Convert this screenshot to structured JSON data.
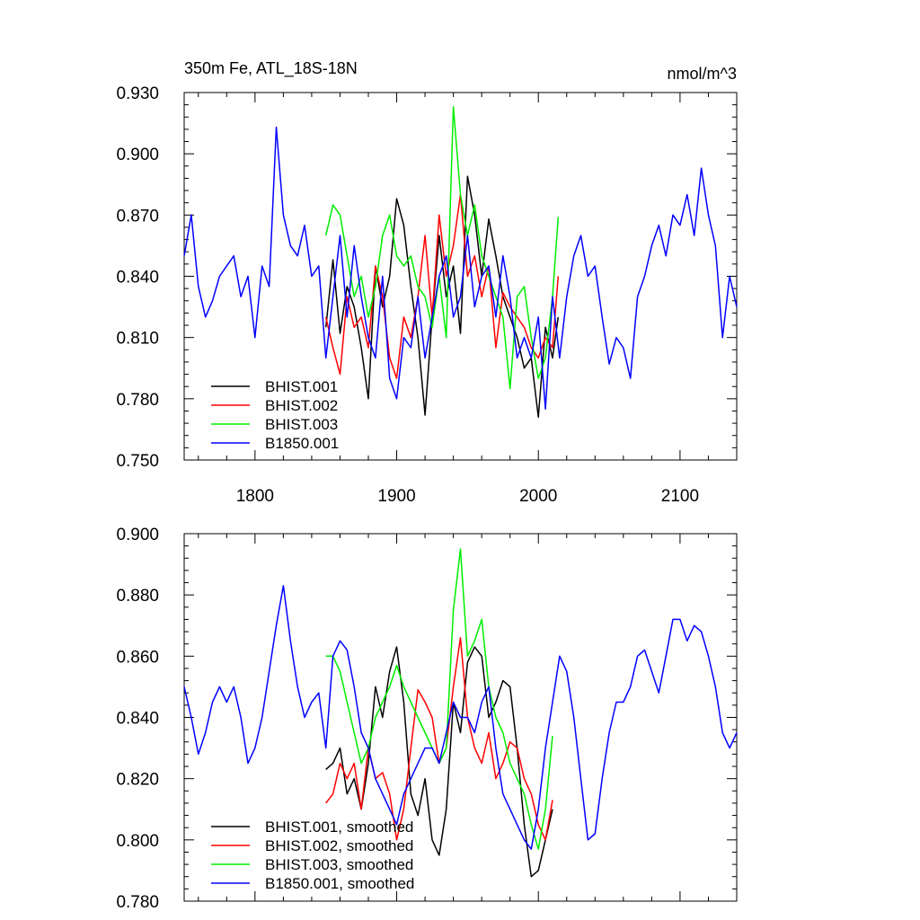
{
  "colors": {
    "BHIST.001": "#000000",
    "BHIST.002": "#ff0000",
    "BHIST.003": "#00ee00",
    "B1850.001": "#0000ff"
  },
  "chart_data": [
    {
      "type": "line",
      "title": "350m Fe, ATL_18S-18N",
      "units": "nmol/m^3",
      "xlim": [
        1750,
        2140
      ],
      "ylim": [
        0.75,
        0.93
      ],
      "xticks": [
        1800,
        1900,
        2000,
        2100
      ],
      "xtick_labels": [
        "1800",
        "1900",
        "2000",
        "2100"
      ],
      "yticks": [
        0.75,
        0.78,
        0.81,
        0.84,
        0.87,
        0.9,
        0.93
      ],
      "ytick_labels": [
        "0.750",
        "0.780",
        "0.810",
        "0.840",
        "0.870",
        "0.900",
        "0.930"
      ],
      "legend_position": "lower-left",
      "series": [
        {
          "name": "BHIST.001",
          "x": [
            1850,
            1855,
            1860,
            1865,
            1870,
            1875,
            1880,
            1885,
            1890,
            1895,
            1900,
            1905,
            1910,
            1915,
            1920,
            1925,
            1930,
            1935,
            1940,
            1945,
            1950,
            1955,
            1960,
            1965,
            1970,
            1975,
            1980,
            1985,
            1990,
            1995,
            2000,
            2005,
            2010,
            2014
          ],
          "y": [
            0.815,
            0.848,
            0.812,
            0.835,
            0.825,
            0.805,
            0.78,
            0.845,
            0.825,
            0.84,
            0.878,
            0.865,
            0.835,
            0.81,
            0.772,
            0.82,
            0.86,
            0.83,
            0.845,
            0.812,
            0.889,
            0.87,
            0.84,
            0.868,
            0.85,
            0.83,
            0.82,
            0.81,
            0.795,
            0.8,
            0.771,
            0.815,
            0.8,
            0.82
          ]
        },
        {
          "name": "BHIST.002",
          "x": [
            1850,
            1855,
            1860,
            1865,
            1870,
            1875,
            1880,
            1885,
            1890,
            1895,
            1900,
            1905,
            1910,
            1915,
            1920,
            1925,
            1930,
            1935,
            1940,
            1945,
            1950,
            1955,
            1960,
            1965,
            1970,
            1975,
            1980,
            1985,
            1990,
            1995,
            2000,
            2005,
            2010,
            2014
          ],
          "y": [
            0.82,
            0.805,
            0.792,
            0.83,
            0.815,
            0.82,
            0.805,
            0.845,
            0.83,
            0.8,
            0.79,
            0.82,
            0.81,
            0.83,
            0.86,
            0.82,
            0.87,
            0.84,
            0.855,
            0.88,
            0.84,
            0.85,
            0.83,
            0.845,
            0.805,
            0.832,
            0.825,
            0.82,
            0.815,
            0.805,
            0.8,
            0.81,
            0.805,
            0.84
          ]
        },
        {
          "name": "BHIST.003",
          "x": [
            1850,
            1855,
            1860,
            1865,
            1870,
            1875,
            1880,
            1885,
            1890,
            1895,
            1900,
            1905,
            1910,
            1915,
            1920,
            1925,
            1930,
            1935,
            1940,
            1945,
            1950,
            1955,
            1960,
            1965,
            1970,
            1975,
            1980,
            1985,
            1990,
            1995,
            2000,
            2005,
            2010,
            2014
          ],
          "y": [
            0.86,
            0.875,
            0.87,
            0.85,
            0.83,
            0.84,
            0.82,
            0.835,
            0.86,
            0.87,
            0.85,
            0.845,
            0.85,
            0.835,
            0.83,
            0.815,
            0.84,
            0.81,
            0.923,
            0.88,
            0.86,
            0.875,
            0.85,
            0.84,
            0.83,
            0.82,
            0.785,
            0.83,
            0.835,
            0.81,
            0.79,
            0.8,
            0.83,
            0.869
          ]
        },
        {
          "name": "B1850.001",
          "x": [
            1750,
            1755,
            1760,
            1765,
            1770,
            1775,
            1780,
            1785,
            1790,
            1795,
            1800,
            1805,
            1810,
            1815,
            1820,
            1825,
            1830,
            1835,
            1840,
            1845,
            1850,
            1855,
            1860,
            1865,
            1870,
            1875,
            1880,
            1885,
            1890,
            1895,
            1900,
            1905,
            1910,
            1915,
            1920,
            1925,
            1930,
            1935,
            1940,
            1945,
            1950,
            1955,
            1960,
            1965,
            1970,
            1975,
            1980,
            1985,
            1990,
            1995,
            2000,
            2005,
            2010,
            2015,
            2020,
            2025,
            2030,
            2035,
            2040,
            2045,
            2050,
            2055,
            2060,
            2065,
            2070,
            2075,
            2080,
            2085,
            2090,
            2095,
            2100,
            2105,
            2110,
            2115,
            2120,
            2125,
            2130,
            2135,
            2140
          ],
          "y": [
            0.85,
            0.87,
            0.835,
            0.82,
            0.828,
            0.84,
            0.845,
            0.85,
            0.83,
            0.84,
            0.81,
            0.845,
            0.835,
            0.913,
            0.87,
            0.855,
            0.85,
            0.865,
            0.84,
            0.845,
            0.8,
            0.83,
            0.86,
            0.82,
            0.855,
            0.83,
            0.81,
            0.8,
            0.84,
            0.79,
            0.78,
            0.81,
            0.805,
            0.83,
            0.8,
            0.82,
            0.84,
            0.85,
            0.82,
            0.83,
            0.86,
            0.825,
            0.84,
            0.845,
            0.82,
            0.85,
            0.83,
            0.8,
            0.81,
            0.8,
            0.82,
            0.775,
            0.83,
            0.8,
            0.83,
            0.85,
            0.86,
            0.84,
            0.845,
            0.82,
            0.797,
            0.81,
            0.805,
            0.79,
            0.83,
            0.84,
            0.855,
            0.865,
            0.85,
            0.87,
            0.865,
            0.88,
            0.86,
            0.893,
            0.87,
            0.855,
            0.81,
            0.84,
            0.825
          ]
        }
      ]
    },
    {
      "type": "line",
      "title": "",
      "units": "",
      "xlim": [
        1750,
        2140
      ],
      "ylim": [
        0.78,
        0.9
      ],
      "xticks": [
        1800,
        1900,
        2000,
        2100
      ],
      "xtick_labels": [
        "",
        "",
        "",
        ""
      ],
      "yticks": [
        0.78,
        0.8,
        0.82,
        0.84,
        0.86,
        0.88,
        0.9
      ],
      "ytick_labels": [
        "0.780",
        "0.800",
        "0.820",
        "0.840",
        "0.860",
        "0.880",
        "0.900"
      ],
      "legend_position": "lower-left",
      "series": [
        {
          "name": "BHIST.001, smoothed",
          "x": [
            1850,
            1855,
            1860,
            1865,
            1870,
            1875,
            1880,
            1885,
            1890,
            1895,
            1900,
            1905,
            1910,
            1915,
            1920,
            1925,
            1930,
            1935,
            1940,
            1945,
            1950,
            1955,
            1960,
            1965,
            1970,
            1975,
            1980,
            1985,
            1990,
            1995,
            2000,
            2005,
            2010
          ],
          "y": [
            0.823,
            0.825,
            0.83,
            0.815,
            0.82,
            0.81,
            0.825,
            0.85,
            0.84,
            0.855,
            0.863,
            0.845,
            0.815,
            0.808,
            0.82,
            0.8,
            0.795,
            0.81,
            0.845,
            0.835,
            0.858,
            0.863,
            0.86,
            0.84,
            0.845,
            0.852,
            0.85,
            0.83,
            0.805,
            0.788,
            0.79,
            0.8,
            0.81
          ]
        },
        {
          "name": "BHIST.002, smoothed",
          "x": [
            1850,
            1855,
            1860,
            1865,
            1870,
            1875,
            1880,
            1885,
            1890,
            1895,
            1900,
            1905,
            1910,
            1915,
            1920,
            1925,
            1930,
            1935,
            1940,
            1945,
            1950,
            1955,
            1960,
            1965,
            1970,
            1975,
            1980,
            1985,
            1990,
            1995,
            2000,
            2005,
            2010
          ],
          "y": [
            0.812,
            0.815,
            0.825,
            0.82,
            0.825,
            0.81,
            0.83,
            0.82,
            0.822,
            0.815,
            0.8,
            0.81,
            0.83,
            0.849,
            0.845,
            0.84,
            0.825,
            0.83,
            0.85,
            0.866,
            0.84,
            0.83,
            0.825,
            0.835,
            0.82,
            0.825,
            0.832,
            0.83,
            0.82,
            0.815,
            0.805,
            0.8,
            0.813
          ]
        },
        {
          "name": "BHIST.003, smoothed",
          "x": [
            1850,
            1855,
            1860,
            1865,
            1870,
            1875,
            1880,
            1885,
            1890,
            1895,
            1900,
            1905,
            1910,
            1915,
            1920,
            1925,
            1930,
            1935,
            1940,
            1945,
            1950,
            1955,
            1960,
            1965,
            1970,
            1975,
            1980,
            1985,
            1990,
            1995,
            2000,
            2005,
            2010
          ],
          "y": [
            0.86,
            0.86,
            0.855,
            0.845,
            0.835,
            0.825,
            0.83,
            0.84,
            0.845,
            0.85,
            0.857,
            0.85,
            0.845,
            0.84,
            0.835,
            0.83,
            0.825,
            0.83,
            0.875,
            0.895,
            0.86,
            0.865,
            0.872,
            0.85,
            0.84,
            0.835,
            0.825,
            0.82,
            0.815,
            0.805,
            0.797,
            0.81,
            0.834
          ]
        },
        {
          "name": "B1850.001, smoothed",
          "x": [
            1750,
            1755,
            1760,
            1765,
            1770,
            1775,
            1780,
            1785,
            1790,
            1795,
            1800,
            1805,
            1810,
            1815,
            1820,
            1825,
            1830,
            1835,
            1840,
            1845,
            1850,
            1855,
            1860,
            1865,
            1870,
            1875,
            1880,
            1885,
            1890,
            1895,
            1900,
            1905,
            1910,
            1915,
            1920,
            1925,
            1930,
            1935,
            1940,
            1945,
            1950,
            1955,
            1960,
            1965,
            1970,
            1975,
            1980,
            1985,
            1990,
            1995,
            2000,
            2005,
            2010,
            2015,
            2020,
            2025,
            2030,
            2035,
            2040,
            2045,
            2050,
            2055,
            2060,
            2065,
            2070,
            2075,
            2080,
            2085,
            2090,
            2095,
            2100,
            2105,
            2110,
            2115,
            2120,
            2125,
            2130,
            2135,
            2140
          ],
          "y": [
            0.85,
            0.84,
            0.828,
            0.835,
            0.845,
            0.85,
            0.845,
            0.85,
            0.84,
            0.825,
            0.83,
            0.84,
            0.855,
            0.87,
            0.883,
            0.865,
            0.85,
            0.84,
            0.845,
            0.848,
            0.83,
            0.86,
            0.865,
            0.862,
            0.85,
            0.835,
            0.83,
            0.82,
            0.815,
            0.81,
            0.805,
            0.815,
            0.82,
            0.825,
            0.83,
            0.83,
            0.825,
            0.835,
            0.845,
            0.84,
            0.84,
            0.835,
            0.845,
            0.85,
            0.83,
            0.815,
            0.81,
            0.805,
            0.8,
            0.797,
            0.81,
            0.83,
            0.845,
            0.86,
            0.855,
            0.84,
            0.82,
            0.8,
            0.802,
            0.82,
            0.835,
            0.845,
            0.845,
            0.85,
            0.86,
            0.862,
            0.855,
            0.848,
            0.86,
            0.872,
            0.872,
            0.865,
            0.87,
            0.868,
            0.86,
            0.85,
            0.835,
            0.83,
            0.835
          ]
        }
      ]
    }
  ]
}
